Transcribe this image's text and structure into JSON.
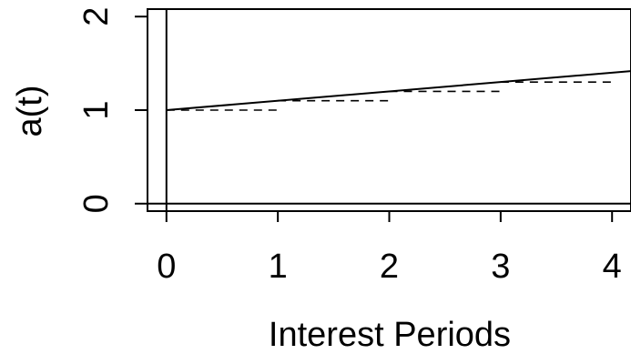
{
  "chart_data": {
    "type": "line",
    "title": "",
    "xlabel": "Interest Periods",
    "ylabel": "a(t)",
    "xlim": [
      -0.17,
      4.17
    ],
    "ylim": [
      -0.08,
      2.08
    ],
    "x_ticks": [
      0,
      1,
      2,
      3,
      4
    ],
    "x_tick_labels": [
      "0",
      "1",
      "2",
      "3",
      "4"
    ],
    "y_ticks": [
      0,
      1,
      2
    ],
    "y_tick_labels": [
      "0",
      "1",
      "2"
    ],
    "grid": false,
    "legend": "none",
    "reference_lines": [
      {
        "orientation": "vertical",
        "x": 0
      },
      {
        "orientation": "horizontal",
        "y": 0
      }
    ],
    "series": [
      {
        "style": "solid",
        "color": "#000000",
        "x": [
          0,
          4.17
        ],
        "y": [
          1.0,
          1.417
        ]
      },
      {
        "style": "dashed-steps",
        "color": "#000000",
        "steps": [
          {
            "x": [
              0,
              1
            ],
            "y": 1.0
          },
          {
            "x": [
              1,
              2
            ],
            "y": 1.1
          },
          {
            "x": [
              2,
              3
            ],
            "y": 1.2
          },
          {
            "x": [
              3,
              4
            ],
            "y": 1.3
          }
        ]
      }
    ]
  }
}
